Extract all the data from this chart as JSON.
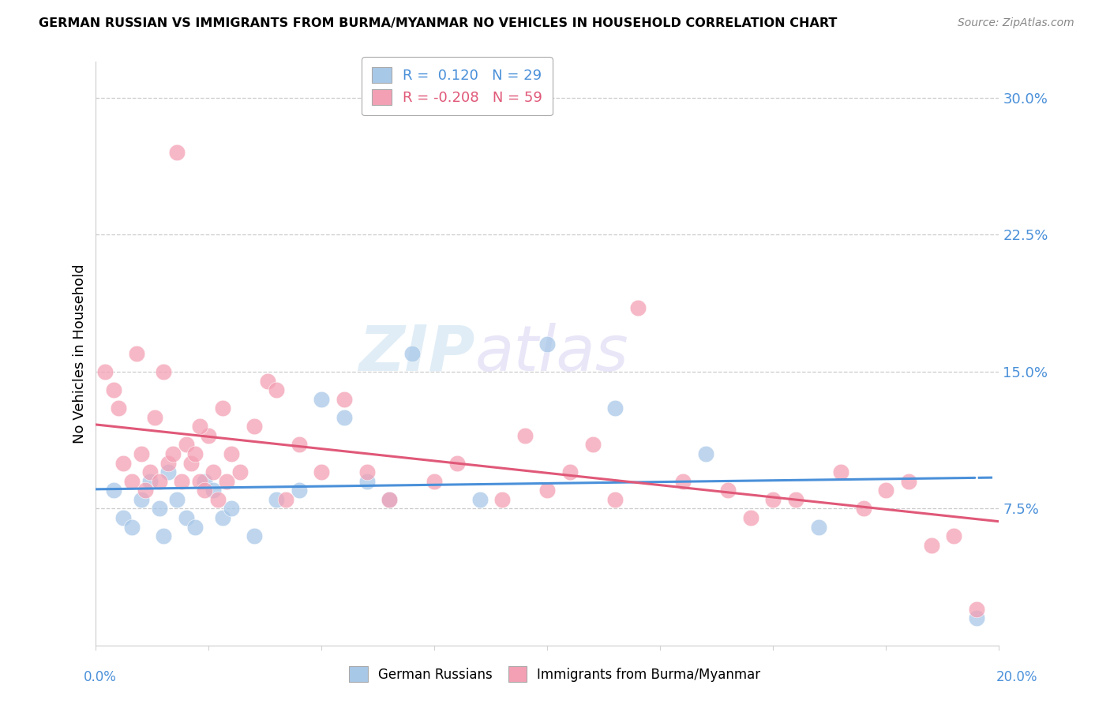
{
  "title": "GERMAN RUSSIAN VS IMMIGRANTS FROM BURMA/MYANMAR NO VEHICLES IN HOUSEHOLD CORRELATION CHART",
  "source": "Source: ZipAtlas.com",
  "ylabel": "No Vehicles in Household",
  "right_yticks": [
    7.5,
    15.0,
    22.5,
    30.0
  ],
  "right_ytick_labels": [
    "7.5%",
    "15.0%",
    "22.5%",
    "30.0%"
  ],
  "legend_line1": "R =  0.120   N = 29",
  "legend_line2": "R = -0.208   N = 59",
  "bottom_legend_blue": "German Russians",
  "bottom_legend_pink": "Immigrants from Burma/Myanmar",
  "watermark_zip": "ZIP",
  "watermark_atlas": "atlas",
  "blue_color": "#a8c8e8",
  "pink_color": "#f4a0b4",
  "blue_line_color": "#4a90d9",
  "pink_line_color": "#e05878",
  "xmin": 0.0,
  "xmax": 20.0,
  "ymin": 0.0,
  "ymax": 32.0,
  "blue_scatter_x": [
    0.4,
    0.6,
    0.8,
    1.0,
    1.2,
    1.4,
    1.5,
    1.6,
    1.8,
    2.0,
    2.2,
    2.4,
    2.6,
    2.8,
    3.0,
    3.5,
    4.0,
    4.5,
    5.0,
    5.5,
    6.0,
    6.5,
    7.0,
    8.5,
    10.0,
    11.5,
    13.5,
    16.0,
    19.5
  ],
  "blue_scatter_y": [
    8.5,
    7.0,
    6.5,
    8.0,
    9.0,
    7.5,
    6.0,
    9.5,
    8.0,
    7.0,
    6.5,
    9.0,
    8.5,
    7.0,
    7.5,
    6.0,
    8.0,
    8.5,
    13.5,
    12.5,
    9.0,
    8.0,
    16.0,
    8.0,
    16.5,
    13.0,
    10.5,
    6.5,
    1.5
  ],
  "pink_scatter_x": [
    0.2,
    0.4,
    0.5,
    0.6,
    0.8,
    0.9,
    1.0,
    1.1,
    1.2,
    1.3,
    1.4,
    1.5,
    1.6,
    1.7,
    1.8,
    1.9,
    2.0,
    2.1,
    2.2,
    2.3,
    2.4,
    2.5,
    2.6,
    2.7,
    2.8,
    2.9,
    3.0,
    3.2,
    3.5,
    3.8,
    4.0,
    4.5,
    5.0,
    5.5,
    6.0,
    6.5,
    7.5,
    8.0,
    9.0,
    9.5,
    10.0,
    10.5,
    11.0,
    11.5,
    12.0,
    13.0,
    14.0,
    14.5,
    15.0,
    15.5,
    16.5,
    17.0,
    17.5,
    18.0,
    18.5,
    19.0,
    19.5,
    4.2,
    2.3
  ],
  "pink_scatter_y": [
    15.0,
    14.0,
    13.0,
    10.0,
    9.0,
    16.0,
    10.5,
    8.5,
    9.5,
    12.5,
    9.0,
    15.0,
    10.0,
    10.5,
    27.0,
    9.0,
    11.0,
    10.0,
    10.5,
    9.0,
    8.5,
    11.5,
    9.5,
    8.0,
    13.0,
    9.0,
    10.5,
    9.5,
    12.0,
    14.5,
    14.0,
    11.0,
    9.5,
    13.5,
    9.5,
    8.0,
    9.0,
    10.0,
    8.0,
    11.5,
    8.5,
    9.5,
    11.0,
    8.0,
    18.5,
    9.0,
    8.5,
    7.0,
    8.0,
    8.0,
    9.5,
    7.5,
    8.5,
    9.0,
    5.5,
    6.0,
    2.0,
    8.0,
    12.0
  ]
}
